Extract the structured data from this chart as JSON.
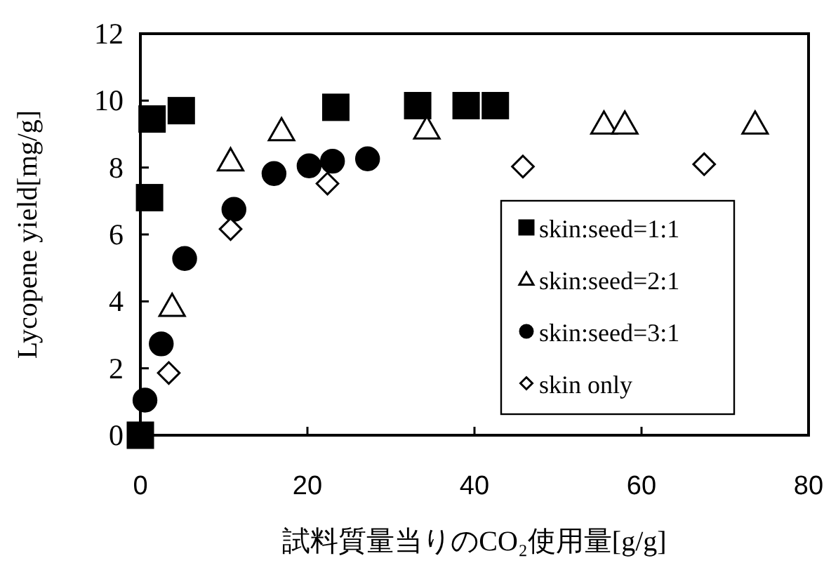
{
  "chart_data": {
    "type": "scatter",
    "xlabel": "試料質量当りのCO₂使用量[g/g]",
    "ylabel": "Lycopene yield[mg/g]",
    "xlim": [
      0,
      80
    ],
    "xticks": [
      0,
      20,
      40,
      60,
      80
    ],
    "ylim": [
      0,
      12
    ],
    "yticks": [
      0,
      2,
      4,
      6,
      8,
      10,
      12
    ],
    "grid": false,
    "legend": "bottom right",
    "series": [
      {
        "name": "skin:seed=1:1",
        "color": "#000000",
        "marker": "square",
        "x": [
          0,
          1.1,
          1.4,
          4.9,
          23.4,
          33.2,
          39.0,
          42.5
        ],
        "values": [
          0,
          7.1,
          9.45,
          9.7,
          9.8,
          9.85,
          9.85,
          9.85
        ]
      },
      {
        "name": "skin:seed=2:1",
        "color": "#000000",
        "marker": "triangle",
        "x": [
          3.8,
          10.8,
          16.9,
          34.3,
          55.5,
          58.0,
          73.6
        ],
        "values": [
          3.85,
          8.2,
          9.1,
          9.15,
          9.3,
          9.3,
          9.3
        ]
      },
      {
        "name": "skin:seed=3:1",
        "color": "#000000",
        "marker": "circle",
        "x": [
          0.55,
          2.5,
          5.3,
          11.2,
          16.0,
          20.2,
          23.0,
          27.2
        ],
        "values": [
          1.05,
          2.73,
          5.28,
          6.75,
          7.82,
          8.05,
          8.19,
          8.26
        ]
      },
      {
        "name": "skin only",
        "color": "#000000",
        "marker": "diamond",
        "x": [
          3.4,
          10.8,
          22.4,
          45.8,
          67.5
        ],
        "values": [
          1.86,
          6.16,
          7.52,
          8.03,
          8.1
        ]
      }
    ]
  }
}
